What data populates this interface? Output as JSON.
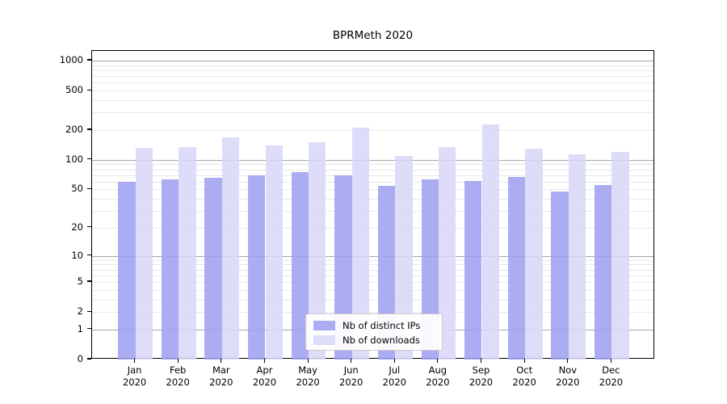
{
  "title": "BPRMeth 2020",
  "chart_data": {
    "type": "bar",
    "title": "BPRMeth 2020",
    "categories": [
      "Jan",
      "Feb",
      "Mar",
      "Apr",
      "May",
      "Jun",
      "Jul",
      "Aug",
      "Sep",
      "Oct",
      "Nov",
      "Dec"
    ],
    "x_year": "2020",
    "series": [
      {
        "name": "Nb of distinct IPs",
        "color": "#a0a0f0",
        "values": [
          60,
          63,
          66,
          70,
          75,
          70,
          54,
          63,
          61,
          67,
          48,
          55
        ]
      },
      {
        "name": "Nb of downloads",
        "color": "#d8d8f8",
        "values": [
          132,
          134,
          168,
          141,
          150,
          212,
          109,
          135,
          228,
          130,
          114,
          120
        ]
      }
    ],
    "y_axis": {
      "scale": "log1p",
      "ticks": [
        0,
        1,
        2,
        5,
        10,
        20,
        50,
        100,
        200,
        500,
        1000
      ],
      "max": 1000
    },
    "legend_position": "lower center",
    "grid": true,
    "colors": {
      "grid_major": "#a6a6a6",
      "grid_minor": "#e8e8e8",
      "axis": "#000000",
      "background": "#ffffff",
      "legend_border": "#cbcbcb"
    }
  }
}
